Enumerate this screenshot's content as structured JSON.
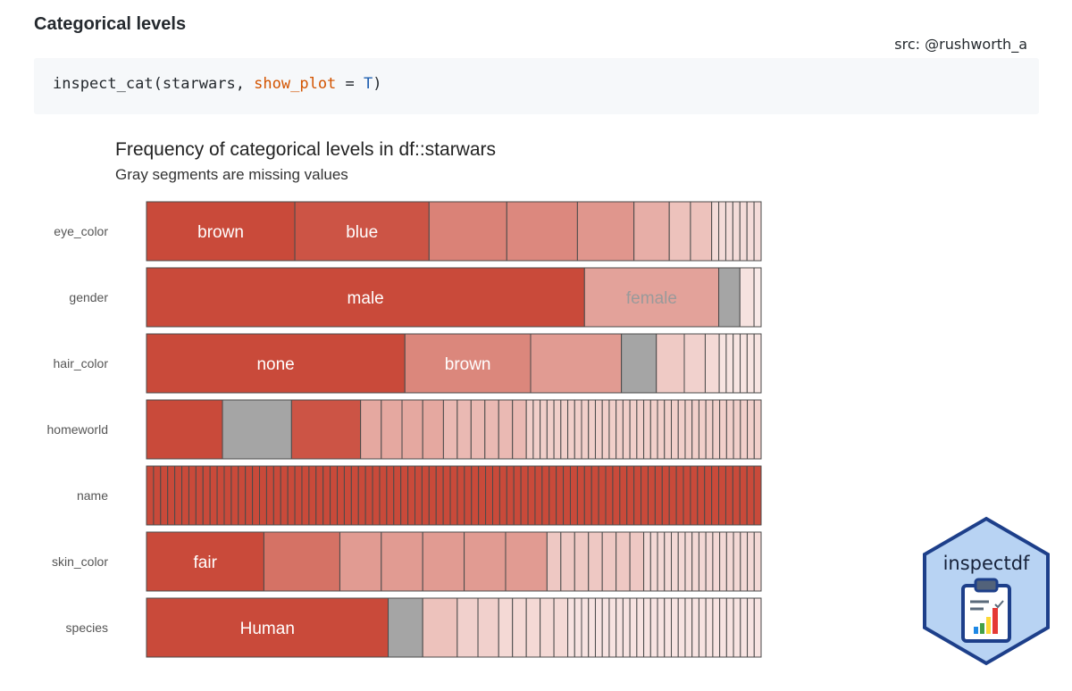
{
  "page": {
    "heading": "Categorical levels",
    "source": "src: @rushworth_a"
  },
  "code": {
    "fn": "inspect_cat(starwars, ",
    "arg": "show_plot",
    "eq": " = ",
    "val": "T",
    "close": ")"
  },
  "logo": {
    "text": "inspectdf",
    "icon": "clipboard-chart-icon"
  },
  "colors": {
    "accent": "#c94a3a",
    "missing": "#a5a5a5",
    "logo_fill": "#b8d3f3",
    "logo_border": "#1d3f8a"
  },
  "chart_data": {
    "type": "bar",
    "title": "Frequency of categorical levels in df::starwars",
    "subtitle": "Gray segments are missing values",
    "categories": [
      "eye_color",
      "gender",
      "hair_color",
      "homeworld",
      "name",
      "skin_color",
      "species"
    ],
    "rows": [
      {
        "name": "eye_color",
        "segments": [
          {
            "value": 21,
            "label": "brown"
          },
          {
            "value": 19,
            "label": "blue"
          },
          {
            "value": 11
          },
          {
            "value": 10
          },
          {
            "value": 8
          },
          {
            "value": 5
          },
          {
            "value": 3
          },
          {
            "value": 3
          },
          {
            "value": 1
          },
          {
            "value": 1
          },
          {
            "value": 1
          },
          {
            "value": 1
          },
          {
            "value": 1
          },
          {
            "value": 1
          },
          {
            "value": 1
          }
        ]
      },
      {
        "name": "gender",
        "segments": [
          {
            "value": 62,
            "label": "male"
          },
          {
            "value": 19,
            "label": "female"
          },
          {
            "value": 3,
            "missing": true
          },
          {
            "value": 2
          },
          {
            "value": 1
          }
        ]
      },
      {
        "name": "hair_color",
        "segments": [
          {
            "value": 37,
            "label": "none"
          },
          {
            "value": 18,
            "label": "brown"
          },
          {
            "value": 13
          },
          {
            "value": 5,
            "missing": true
          },
          {
            "value": 4
          },
          {
            "value": 3
          },
          {
            "value": 2
          },
          {
            "value": 1
          },
          {
            "value": 1
          },
          {
            "value": 1
          },
          {
            "value": 1
          },
          {
            "value": 1
          },
          {
            "value": 1
          }
        ]
      },
      {
        "name": "homeworld",
        "segments": [
          {
            "value": 11
          },
          {
            "value": 10,
            "missing": true
          },
          {
            "value": 10
          },
          {
            "value": 3
          },
          {
            "value": 3
          },
          {
            "value": 3
          },
          {
            "value": 3
          },
          {
            "value": 2
          },
          {
            "value": 2
          },
          {
            "value": 2
          },
          {
            "value": 2
          },
          {
            "value": 2
          },
          {
            "value": 2
          },
          {
            "value": 1
          },
          {
            "value": 1
          },
          {
            "value": 1
          },
          {
            "value": 1
          },
          {
            "value": 1
          },
          {
            "value": 1
          },
          {
            "value": 1
          },
          {
            "value": 1
          },
          {
            "value": 1
          },
          {
            "value": 1
          },
          {
            "value": 1
          },
          {
            "value": 1
          },
          {
            "value": 1
          },
          {
            "value": 1
          },
          {
            "value": 1
          },
          {
            "value": 1
          },
          {
            "value": 1
          },
          {
            "value": 1
          },
          {
            "value": 1
          },
          {
            "value": 1
          },
          {
            "value": 1
          },
          {
            "value": 1
          },
          {
            "value": 1
          },
          {
            "value": 1
          },
          {
            "value": 1
          },
          {
            "value": 1
          },
          {
            "value": 1
          },
          {
            "value": 1
          },
          {
            "value": 1
          },
          {
            "value": 1
          },
          {
            "value": 1
          },
          {
            "value": 1
          },
          {
            "value": 1
          },
          {
            "value": 1
          }
        ]
      },
      {
        "name": "name",
        "segments": [
          {
            "value": 1
          },
          {
            "value": 1
          },
          {
            "value": 1
          },
          {
            "value": 1
          },
          {
            "value": 1
          },
          {
            "value": 1
          },
          {
            "value": 1
          },
          {
            "value": 1
          },
          {
            "value": 1
          },
          {
            "value": 1
          },
          {
            "value": 1
          },
          {
            "value": 1
          },
          {
            "value": 1
          },
          {
            "value": 1
          },
          {
            "value": 1
          },
          {
            "value": 1
          },
          {
            "value": 1
          },
          {
            "value": 1
          },
          {
            "value": 1
          },
          {
            "value": 1
          },
          {
            "value": 1
          },
          {
            "value": 1
          },
          {
            "value": 1
          },
          {
            "value": 1
          },
          {
            "value": 1
          },
          {
            "value": 1
          },
          {
            "value": 1
          },
          {
            "value": 1
          },
          {
            "value": 1
          },
          {
            "value": 1
          },
          {
            "value": 1
          },
          {
            "value": 1
          },
          {
            "value": 1
          },
          {
            "value": 1
          },
          {
            "value": 1
          },
          {
            "value": 1
          },
          {
            "value": 1
          },
          {
            "value": 1
          },
          {
            "value": 1
          },
          {
            "value": 1
          },
          {
            "value": 1
          },
          {
            "value": 1
          },
          {
            "value": 1
          },
          {
            "value": 1
          },
          {
            "value": 1
          },
          {
            "value": 1
          },
          {
            "value": 1
          },
          {
            "value": 1
          },
          {
            "value": 1
          },
          {
            "value": 1
          },
          {
            "value": 1
          },
          {
            "value": 1
          },
          {
            "value": 1
          },
          {
            "value": 1
          },
          {
            "value": 1
          },
          {
            "value": 1
          },
          {
            "value": 1
          },
          {
            "value": 1
          },
          {
            "value": 1
          },
          {
            "value": 1
          },
          {
            "value": 1
          },
          {
            "value": 1
          },
          {
            "value": 1
          },
          {
            "value": 1
          },
          {
            "value": 1
          },
          {
            "value": 1
          },
          {
            "value": 1
          },
          {
            "value": 1
          },
          {
            "value": 1
          },
          {
            "value": 1
          },
          {
            "value": 1
          },
          {
            "value": 1
          },
          {
            "value": 1
          },
          {
            "value": 1
          },
          {
            "value": 1
          },
          {
            "value": 1
          },
          {
            "value": 1
          },
          {
            "value": 1
          },
          {
            "value": 1
          },
          {
            "value": 1
          },
          {
            "value": 1
          },
          {
            "value": 1
          },
          {
            "value": 1
          },
          {
            "value": 1
          },
          {
            "value": 1
          },
          {
            "value": 1
          },
          {
            "value": 1
          }
        ]
      },
      {
        "name": "skin_color",
        "segments": [
          {
            "value": 17,
            "label": "fair"
          },
          {
            "value": 11
          },
          {
            "value": 6
          },
          {
            "value": 6
          },
          {
            "value": 6
          },
          {
            "value": 6
          },
          {
            "value": 6
          },
          {
            "value": 2
          },
          {
            "value": 2
          },
          {
            "value": 2
          },
          {
            "value": 2
          },
          {
            "value": 2
          },
          {
            "value": 2
          },
          {
            "value": 2
          },
          {
            "value": 1
          },
          {
            "value": 1
          },
          {
            "value": 1
          },
          {
            "value": 1
          },
          {
            "value": 1
          },
          {
            "value": 1
          },
          {
            "value": 1
          },
          {
            "value": 1
          },
          {
            "value": 1
          },
          {
            "value": 1
          },
          {
            "value": 1
          },
          {
            "value": 1
          },
          {
            "value": 1
          },
          {
            "value": 1
          },
          {
            "value": 1
          },
          {
            "value": 1
          },
          {
            "value": 1
          }
        ]
      },
      {
        "name": "species",
        "segments": [
          {
            "value": 35,
            "label": "Human"
          },
          {
            "value": 5,
            "missing": true
          },
          {
            "value": 5
          },
          {
            "value": 3
          },
          {
            "value": 3
          },
          {
            "value": 2
          },
          {
            "value": 2
          },
          {
            "value": 2
          },
          {
            "value": 2
          },
          {
            "value": 2
          },
          {
            "value": 1
          },
          {
            "value": 1
          },
          {
            "value": 1
          },
          {
            "value": 1
          },
          {
            "value": 1
          },
          {
            "value": 1
          },
          {
            "value": 1
          },
          {
            "value": 1
          },
          {
            "value": 1
          },
          {
            "value": 1
          },
          {
            "value": 1
          },
          {
            "value": 1
          },
          {
            "value": 1
          },
          {
            "value": 1
          },
          {
            "value": 1
          },
          {
            "value": 1
          },
          {
            "value": 1
          },
          {
            "value": 1
          },
          {
            "value": 1
          },
          {
            "value": 1
          },
          {
            "value": 1
          },
          {
            "value": 1
          },
          {
            "value": 1
          },
          {
            "value": 1
          },
          {
            "value": 1
          },
          {
            "value": 1
          },
          {
            "value": 1
          },
          {
            "value": 1
          }
        ]
      }
    ]
  }
}
